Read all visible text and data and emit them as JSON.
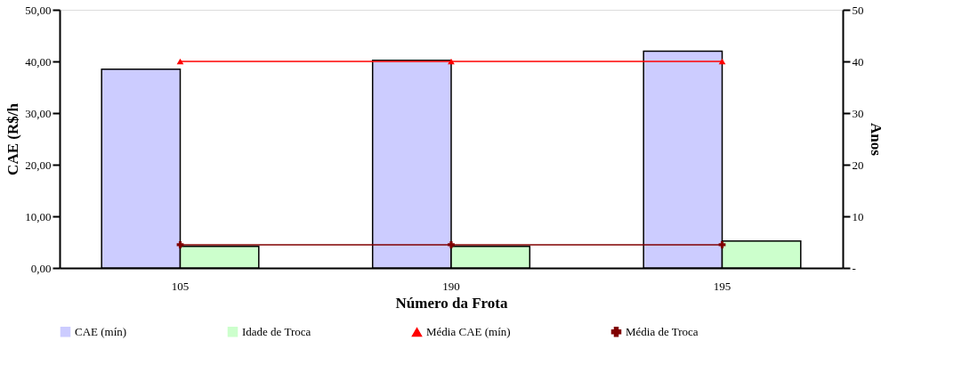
{
  "chart_data": {
    "type": "bar",
    "xlabel": "Número da Frota",
    "ylabel": "CAE (R$/h",
    "y2label": "Anos",
    "categories": [
      "105",
      "190",
      "195"
    ],
    "series": [
      {
        "name": "CAE (mín)",
        "color": "#ccccff",
        "values": [
          38.5,
          40.2,
          42.0
        ]
      },
      {
        "name": "Idade de Troca",
        "color": "#ccffcc",
        "axis": "y2",
        "values": [
          4.2,
          4.2,
          5.2
        ]
      },
      {
        "name": "Média CAE (mín)",
        "type": "line",
        "color": "#ff0000",
        "marker": "triangle",
        "values": [
          40,
          40,
          40
        ]
      },
      {
        "name": "Média de Troca",
        "type": "line",
        "color": "#800000",
        "marker": "cross",
        "axis": "y2",
        "values": [
          4.5,
          4.5,
          4.5
        ]
      }
    ],
    "ylim": [
      0,
      50
    ],
    "yticks": [
      {
        "value": 0,
        "label": "0,00"
      },
      {
        "value": 10,
        "label": "10,00"
      },
      {
        "value": 20,
        "label": "20,00"
      },
      {
        "value": 30,
        "label": "30,00"
      },
      {
        "value": 40,
        "label": "40,00"
      },
      {
        "value": 50,
        "label": "50,00"
      }
    ],
    "y2lim": [
      0,
      50
    ],
    "y2ticks": [
      {
        "value": 0,
        "label": "-"
      },
      10,
      20,
      30,
      40,
      50
    ],
    "grid": false,
    "legend": "bottom"
  }
}
